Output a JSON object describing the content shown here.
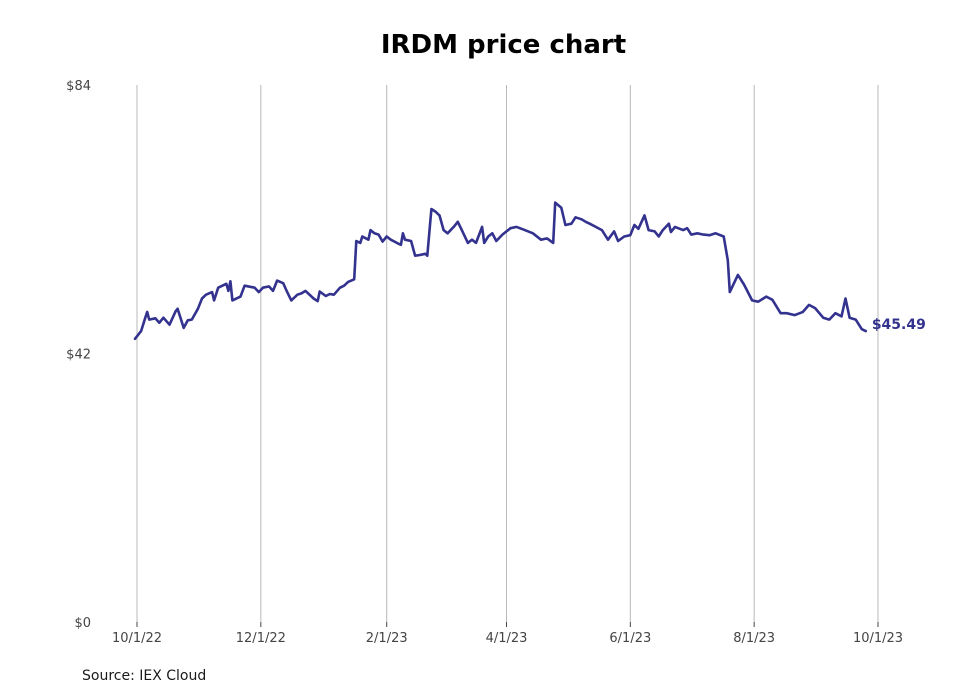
{
  "chart_data": {
    "type": "line",
    "title": "IRDM price chart",
    "xlabel": "",
    "ylabel": "",
    "x_ticks": [
      "10/1/22",
      "12/1/22",
      "2/1/23",
      "4/1/23",
      "6/1/23",
      "8/1/23",
      "10/1/23"
    ],
    "y_ticks": [
      "$0",
      "$42",
      "$84"
    ],
    "y_tick_values": [
      0,
      42,
      84
    ],
    "ylim": [
      0,
      84
    ],
    "xlim": [
      "2022-10-01",
      "2023-10-01"
    ],
    "grid": "vertical lines at x ticks",
    "series": [
      {
        "color": "#33338f",
        "points": [
          [
            "2022-09-30",
            44.3
          ],
          [
            "2022-10-03",
            45.5
          ],
          [
            "2022-10-05",
            47.5
          ],
          [
            "2022-10-06",
            48.5
          ],
          [
            "2022-10-07",
            47.3
          ],
          [
            "2022-10-10",
            47.5
          ],
          [
            "2022-10-12",
            46.8
          ],
          [
            "2022-10-14",
            47.6
          ],
          [
            "2022-10-17",
            46.5
          ],
          [
            "2022-10-20",
            48.6
          ],
          [
            "2022-10-21",
            49.0
          ],
          [
            "2022-10-24",
            46.0
          ],
          [
            "2022-10-26",
            47.2
          ],
          [
            "2022-10-28",
            47.3
          ],
          [
            "2022-10-31",
            49.0
          ],
          [
            "2022-11-02",
            50.6
          ],
          [
            "2022-11-04",
            51.2
          ],
          [
            "2022-11-07",
            51.6
          ],
          [
            "2022-11-08",
            50.3
          ],
          [
            "2022-11-10",
            52.3
          ],
          [
            "2022-11-14",
            52.9
          ],
          [
            "2022-11-15",
            51.8
          ],
          [
            "2022-11-16",
            53.3
          ],
          [
            "2022-11-17",
            50.3
          ],
          [
            "2022-11-21",
            50.9
          ],
          [
            "2022-11-23",
            52.6
          ],
          [
            "2022-11-28",
            52.3
          ],
          [
            "2022-11-30",
            51.6
          ],
          [
            "2022-12-02",
            52.3
          ],
          [
            "2022-12-05",
            52.5
          ],
          [
            "2022-12-07",
            51.8
          ],
          [
            "2022-12-09",
            53.4
          ],
          [
            "2022-12-12",
            53.0
          ],
          [
            "2022-12-14",
            51.6
          ],
          [
            "2022-12-16",
            50.3
          ],
          [
            "2022-12-19",
            51.2
          ],
          [
            "2022-12-21",
            51.4
          ],
          [
            "2022-12-23",
            51.8
          ],
          [
            "2022-12-27",
            50.6
          ],
          [
            "2022-12-29",
            50.2
          ],
          [
            "2022-12-30",
            51.7
          ],
          [
            "2023-01-02",
            51.0
          ],
          [
            "2023-01-04",
            51.3
          ],
          [
            "2023-01-06",
            51.2
          ],
          [
            "2023-01-09",
            52.3
          ],
          [
            "2023-01-11",
            52.6
          ],
          [
            "2023-01-13",
            53.2
          ],
          [
            "2023-01-16",
            53.6
          ],
          [
            "2023-01-17",
            59.6
          ],
          [
            "2023-01-19",
            59.3
          ],
          [
            "2023-01-20",
            60.3
          ],
          [
            "2023-01-23",
            59.8
          ],
          [
            "2023-01-24",
            61.3
          ],
          [
            "2023-01-26",
            60.8
          ],
          [
            "2023-01-28",
            60.6
          ],
          [
            "2023-01-30",
            59.5
          ],
          [
            "2023-02-01",
            60.3
          ],
          [
            "2023-02-03",
            59.8
          ],
          [
            "2023-02-06",
            59.3
          ],
          [
            "2023-02-08",
            59.0
          ],
          [
            "2023-02-09",
            60.8
          ],
          [
            "2023-02-10",
            59.8
          ],
          [
            "2023-02-13",
            59.6
          ],
          [
            "2023-02-15",
            57.3
          ],
          [
            "2023-02-17",
            57.4
          ],
          [
            "2023-02-20",
            57.6
          ],
          [
            "2023-02-21",
            57.3
          ],
          [
            "2023-02-23",
            64.6
          ],
          [
            "2023-02-25",
            64.2
          ],
          [
            "2023-02-27",
            63.6
          ],
          [
            "2023-03-01",
            61.3
          ],
          [
            "2023-03-03",
            60.8
          ],
          [
            "2023-03-06",
            61.8
          ],
          [
            "2023-03-08",
            62.6
          ],
          [
            "2023-03-10",
            61.3
          ],
          [
            "2023-03-13",
            59.3
          ],
          [
            "2023-03-15",
            59.8
          ],
          [
            "2023-03-17",
            59.3
          ],
          [
            "2023-03-20",
            61.8
          ],
          [
            "2023-03-21",
            59.3
          ],
          [
            "2023-03-23",
            60.3
          ],
          [
            "2023-03-25",
            60.8
          ],
          [
            "2023-03-27",
            59.6
          ],
          [
            "2023-03-30",
            60.6
          ],
          [
            "2023-04-03",
            61.6
          ],
          [
            "2023-04-06",
            61.8
          ],
          [
            "2023-04-10",
            61.3
          ],
          [
            "2023-04-14",
            60.8
          ],
          [
            "2023-04-18",
            59.8
          ],
          [
            "2023-04-21",
            60.0
          ],
          [
            "2023-04-24",
            59.3
          ],
          [
            "2023-04-25",
            65.6
          ],
          [
            "2023-04-28",
            64.8
          ],
          [
            "2023-04-30",
            62.1
          ],
          [
            "2023-05-03",
            62.3
          ],
          [
            "2023-05-05",
            63.3
          ],
          [
            "2023-05-08",
            63.0
          ],
          [
            "2023-05-10",
            62.6
          ],
          [
            "2023-05-12",
            62.3
          ],
          [
            "2023-05-15",
            61.8
          ],
          [
            "2023-05-18",
            61.3
          ],
          [
            "2023-05-21",
            59.8
          ],
          [
            "2023-05-24",
            61.1
          ],
          [
            "2023-05-26",
            59.6
          ],
          [
            "2023-05-29",
            60.3
          ],
          [
            "2023-06-01",
            60.5
          ],
          [
            "2023-06-03",
            62.1
          ],
          [
            "2023-06-05",
            61.5
          ],
          [
            "2023-06-08",
            63.6
          ],
          [
            "2023-06-10",
            61.3
          ],
          [
            "2023-06-13",
            61.1
          ],
          [
            "2023-06-15",
            60.3
          ],
          [
            "2023-06-17",
            61.3
          ],
          [
            "2023-06-20",
            62.3
          ],
          [
            "2023-06-21",
            61.0
          ],
          [
            "2023-06-23",
            61.8
          ],
          [
            "2023-06-27",
            61.3
          ],
          [
            "2023-06-29",
            61.6
          ],
          [
            "2023-07-01",
            60.6
          ],
          [
            "2023-07-04",
            60.8
          ],
          [
            "2023-07-07",
            60.6
          ],
          [
            "2023-07-10",
            60.5
          ],
          [
            "2023-07-13",
            60.8
          ],
          [
            "2023-07-17",
            60.3
          ],
          [
            "2023-07-19",
            56.6
          ],
          [
            "2023-07-20",
            51.6
          ],
          [
            "2023-07-24",
            54.3
          ],
          [
            "2023-07-27",
            52.8
          ],
          [
            "2023-07-31",
            50.3
          ],
          [
            "2023-08-03",
            50.1
          ],
          [
            "2023-08-07",
            50.9
          ],
          [
            "2023-08-10",
            50.4
          ],
          [
            "2023-08-14",
            48.3
          ],
          [
            "2023-08-17",
            48.3
          ],
          [
            "2023-08-21",
            48.0
          ],
          [
            "2023-08-25",
            48.5
          ],
          [
            "2023-08-28",
            49.6
          ],
          [
            "2023-08-31",
            49.1
          ],
          [
            "2023-09-04",
            47.6
          ],
          [
            "2023-09-07",
            47.3
          ],
          [
            "2023-09-10",
            48.3
          ],
          [
            "2023-09-13",
            47.8
          ],
          [
            "2023-09-15",
            50.6
          ],
          [
            "2023-09-17",
            47.6
          ],
          [
            "2023-09-20",
            47.3
          ],
          [
            "2023-09-23",
            45.8
          ],
          [
            "2023-09-25",
            45.5
          ]
        ]
      }
    ],
    "end_label": "$45.49",
    "source": "Source: IEX Cloud"
  }
}
